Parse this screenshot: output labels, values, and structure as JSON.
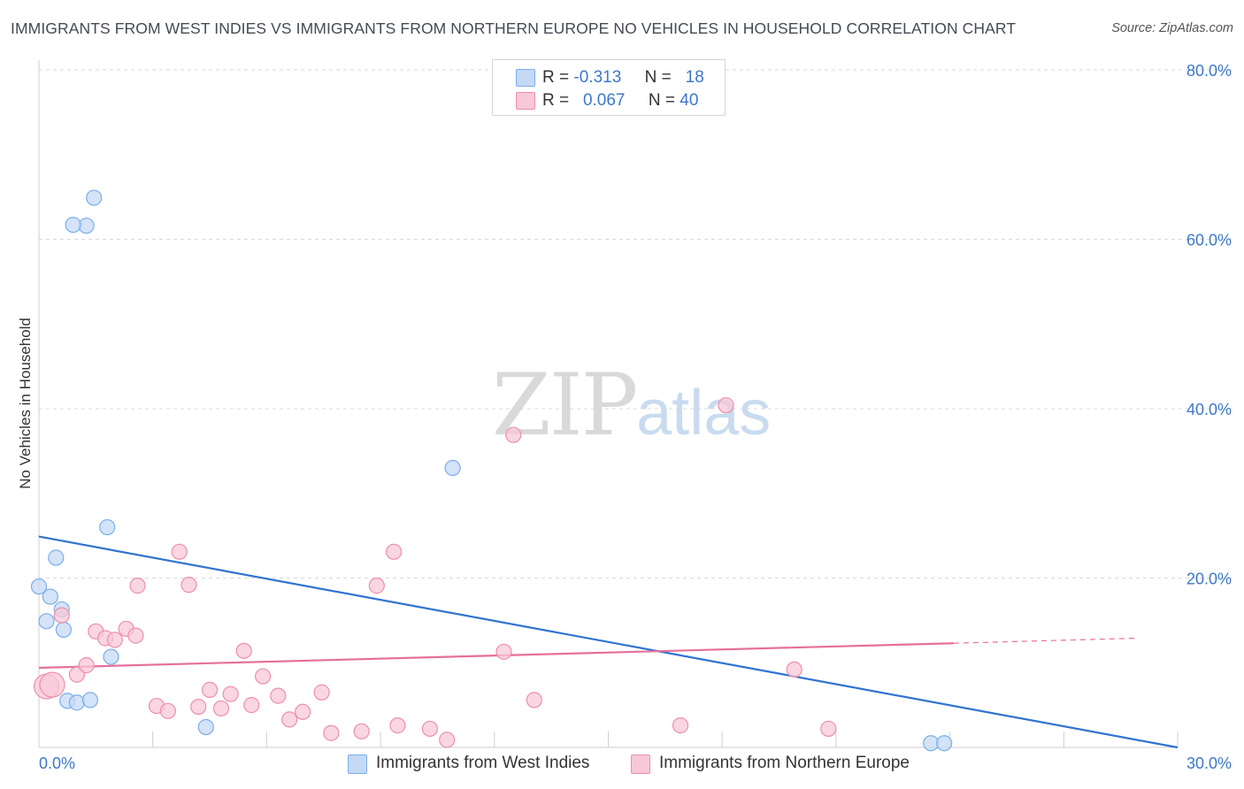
{
  "title": "IMMIGRANTS FROM WEST INDIES VS IMMIGRANTS FROM NORTHERN EUROPE NO VEHICLES IN HOUSEHOLD CORRELATION CHART",
  "source": "Source: ZipAtlas.com",
  "watermark": {
    "zip": "ZIP",
    "atlas": "atlas"
  },
  "legend": {
    "rows": [
      {
        "r_label": "R =",
        "r_value": "-0.313",
        "n_label": "N =",
        "n_value": "18"
      },
      {
        "r_label": "R =",
        "r_value": "0.067",
        "n_label": "N =",
        "n_value": "40"
      }
    ]
  },
  "chart_data": {
    "type": "scatter",
    "title": "IMMIGRANTS FROM WEST INDIES VS IMMIGRANTS FROM NORTHERN EUROPE NO VEHICLES IN HOUSEHOLD CORRELATION CHART",
    "xlabel": "",
    "ylabel": "No Vehicles in Household",
    "xlim": [
      0,
      30
    ],
    "ylim": [
      0,
      80
    ],
    "x_tick_labels": [
      "0.0%",
      "30.0%"
    ],
    "y_ticks": [
      20,
      40,
      60,
      80
    ],
    "y_tick_labels": [
      "20.0%",
      "40.0%",
      "60.0%",
      "80.0%"
    ],
    "grid": "horizontal dashed",
    "legend_position": "bottom",
    "series": [
      {
        "name": "Immigrants from West Indies",
        "color": "#7aaee8",
        "fill": "#c5d9f5",
        "points": [
          [
            1.45,
            64.9
          ],
          [
            1.25,
            61.6
          ],
          [
            0.9,
            61.7
          ],
          [
            1.8,
            26.0
          ],
          [
            0.45,
            22.4
          ],
          [
            0.0,
            19.0
          ],
          [
            0.3,
            17.8
          ],
          [
            0.6,
            16.3
          ],
          [
            0.2,
            14.9
          ],
          [
            0.65,
            13.9
          ],
          [
            1.9,
            10.7
          ],
          [
            0.75,
            5.5
          ],
          [
            1.0,
            5.3
          ],
          [
            1.35,
            5.6
          ],
          [
            4.4,
            2.4
          ],
          [
            10.9,
            33.0
          ],
          [
            23.5,
            0.5
          ],
          [
            23.85,
            0.5
          ]
        ],
        "trend": {
          "x": [
            0,
            30
          ],
          "y": [
            24.9,
            0.0
          ]
        }
      },
      {
        "name": "Immigrants from Northern Europe",
        "color": "#ee8eae",
        "fill": "#f7c8d8",
        "points": [
          [
            0.2,
            7.2
          ],
          [
            0.35,
            7.4
          ],
          [
            0.6,
            15.6
          ],
          [
            1.0,
            8.6
          ],
          [
            1.25,
            9.7
          ],
          [
            1.5,
            13.7
          ],
          [
            1.75,
            12.9
          ],
          [
            2.0,
            12.7
          ],
          [
            2.3,
            14.0
          ],
          [
            2.55,
            13.2
          ],
          [
            2.6,
            19.1
          ],
          [
            3.1,
            4.9
          ],
          [
            3.4,
            4.3
          ],
          [
            3.7,
            23.1
          ],
          [
            3.95,
            19.2
          ],
          [
            4.2,
            4.8
          ],
          [
            4.5,
            6.8
          ],
          [
            4.8,
            4.6
          ],
          [
            5.05,
            6.3
          ],
          [
            5.4,
            11.4
          ],
          [
            5.6,
            5.0
          ],
          [
            5.9,
            8.4
          ],
          [
            6.3,
            6.1
          ],
          [
            6.6,
            3.3
          ],
          [
            6.95,
            4.2
          ],
          [
            7.45,
            6.5
          ],
          [
            7.7,
            1.7
          ],
          [
            8.5,
            1.9
          ],
          [
            8.9,
            19.1
          ],
          [
            9.35,
            23.1
          ],
          [
            9.45,
            2.6
          ],
          [
            10.3,
            2.2
          ],
          [
            10.75,
            0.9
          ],
          [
            12.25,
            11.3
          ],
          [
            12.5,
            36.9
          ],
          [
            13.05,
            5.6
          ],
          [
            16.9,
            2.6
          ],
          [
            18.1,
            40.4
          ],
          [
            19.9,
            9.2
          ],
          [
            20.8,
            2.2
          ]
        ],
        "trend": {
          "x": [
            0,
            24.1
          ],
          "y": [
            9.4,
            12.3
          ]
        },
        "trend_dashed_ext": {
          "x": [
            24.1,
            28.95
          ],
          "y": [
            12.3,
            12.9
          ]
        }
      }
    ]
  }
}
